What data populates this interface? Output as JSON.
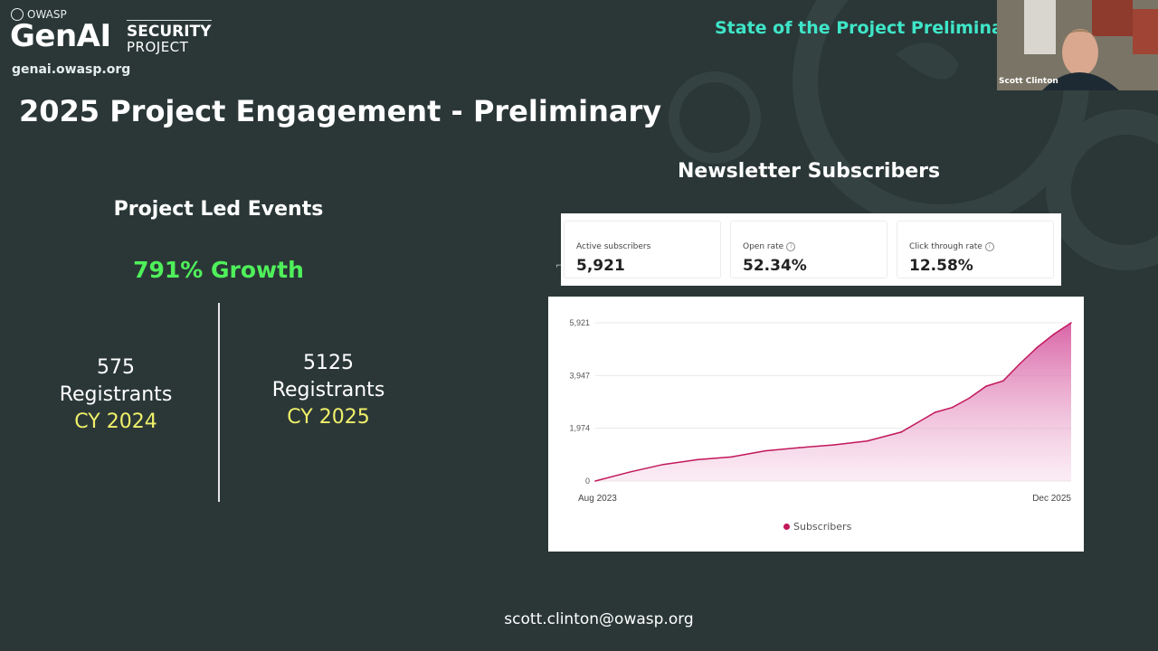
{
  "logo": {
    "owasp": "OWASP",
    "brand": "GenAI",
    "security": "SECURITY",
    "project": "PROJECT",
    "url": "genai.owasp.org"
  },
  "header": {
    "deck_title": "State of the Project Preliminary"
  },
  "slide": {
    "title": "2025 Project Engagement - Preliminary"
  },
  "webcam": {
    "participant_name": "Scott Clinton"
  },
  "events": {
    "title": "Project Led Events",
    "growth": "791% Growth",
    "left": {
      "count": "575",
      "label": "Registrants",
      "year": "CY 2024"
    },
    "right": {
      "count": "5125",
      "label": "Registrants",
      "year": "CY 2025"
    }
  },
  "newsletter": {
    "title": "Newsletter Subscribers",
    "metrics": [
      {
        "label": "Active subscribers",
        "value": "5,921",
        "info": false
      },
      {
        "label": "Open rate",
        "value": "52.34%",
        "info": true
      },
      {
        "label": "Click through rate",
        "value": "12.58%",
        "info": true
      }
    ]
  },
  "chart_data": {
    "type": "area",
    "title": "",
    "xlabel": "",
    "ylabel": "",
    "x_ticks": [
      "Aug 2023",
      "Dec 2025"
    ],
    "y_ticks": [
      "5,921",
      "3,947",
      "1,974",
      "0"
    ],
    "ylim": [
      0,
      5921
    ],
    "grid": true,
    "legend_placement": "bottom",
    "series": [
      {
        "name": "Subscribers",
        "color": "#c2185b",
        "x": [
          "Aug 2023",
          "Oct 2023",
          "Dec 2023",
          "Feb 2024",
          "Apr 2024",
          "Jun 2024",
          "Aug 2024",
          "Oct 2024",
          "Dec 2024",
          "Feb 2025",
          "Apr 2025",
          "May 2025",
          "Jun 2025",
          "Jul 2025",
          "Aug 2025",
          "Sep 2025",
          "Oct 2025",
          "Nov 2025",
          "Dec 2025"
        ],
        "values": [
          0,
          330,
          620,
          800,
          900,
          1130,
          1250,
          1350,
          1500,
          1830,
          2570,
          2750,
          3100,
          3550,
          3750,
          4400,
          5000,
          5500,
          5921
        ]
      }
    ]
  },
  "footer": {
    "email": "scott.clinton@owasp.org"
  }
}
